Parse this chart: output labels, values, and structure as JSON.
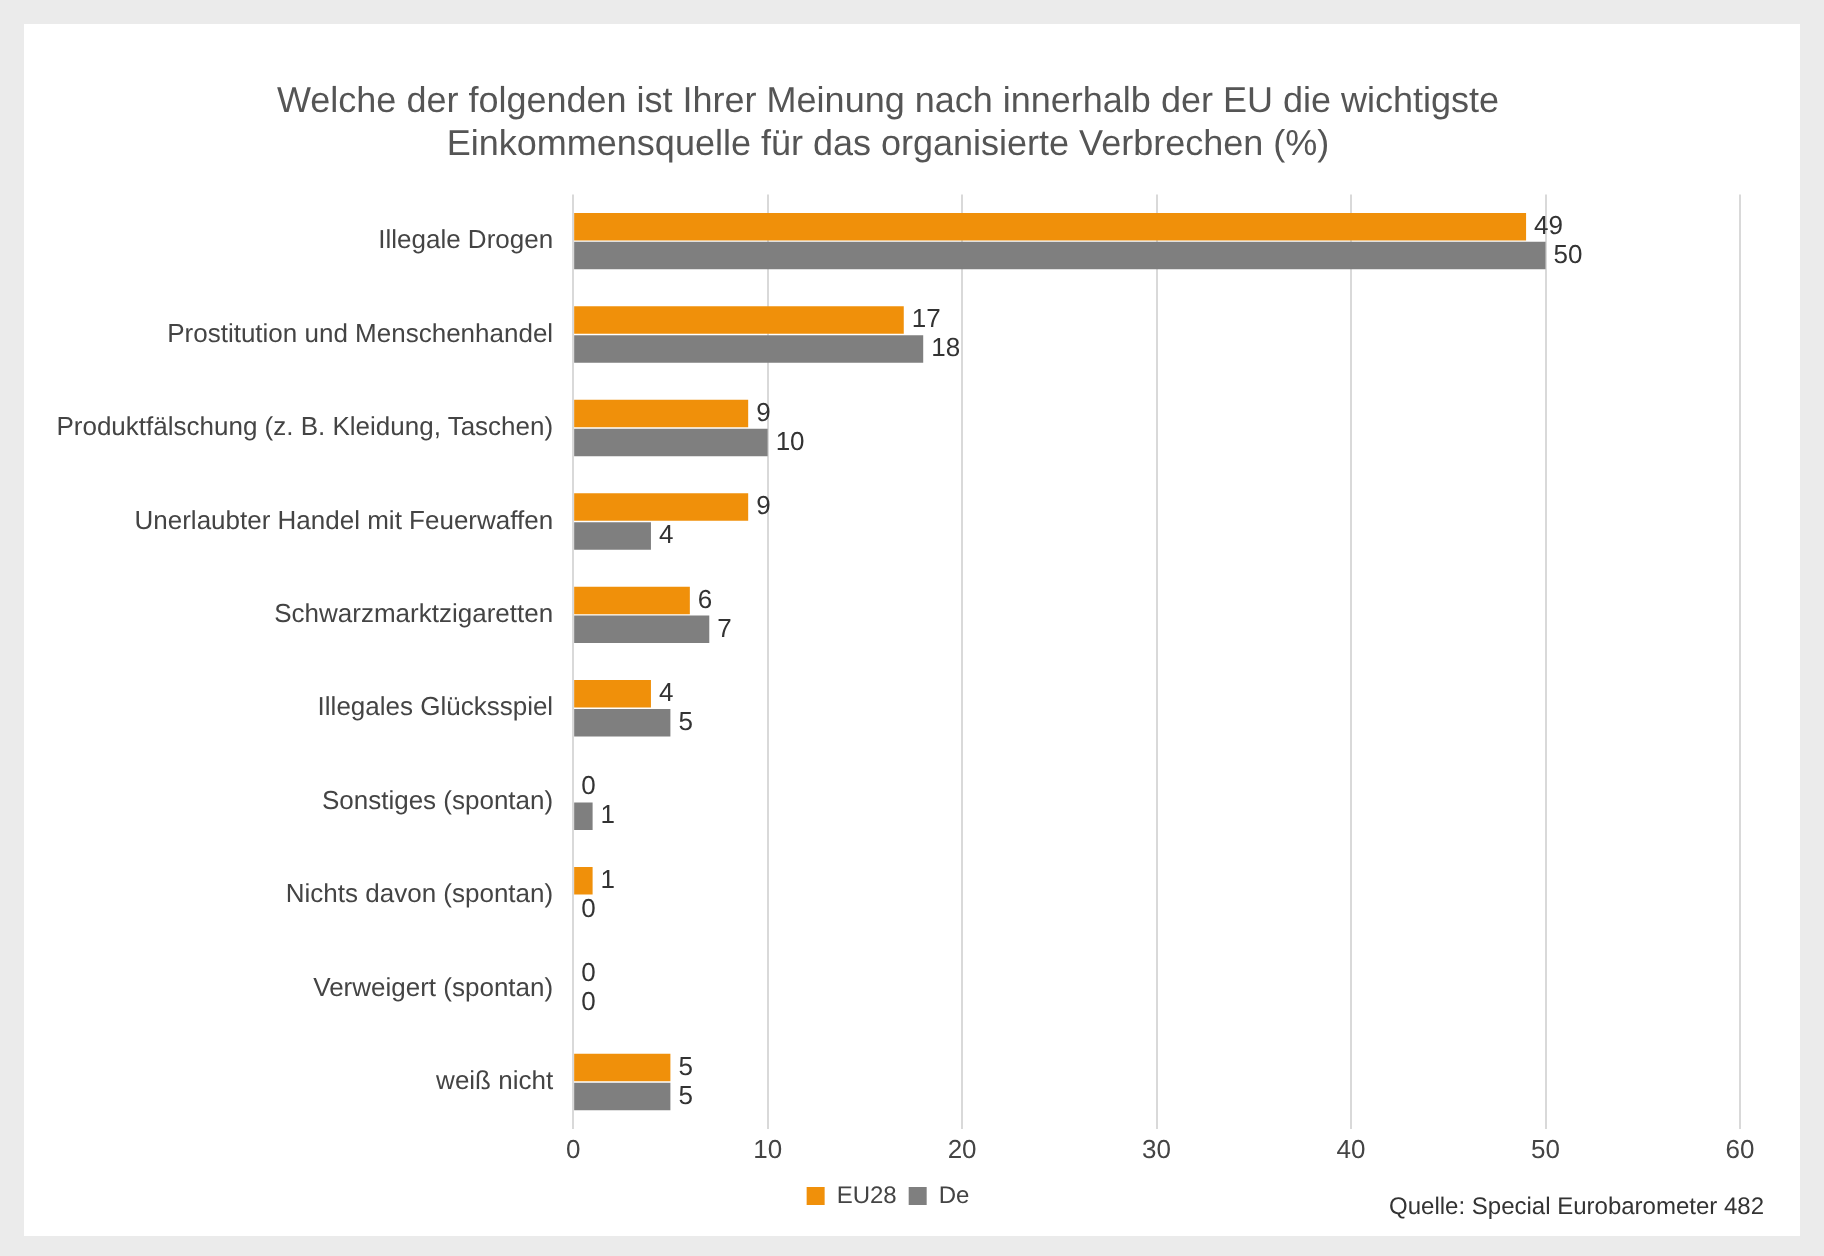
{
  "chart_data": {
    "type": "bar",
    "orientation": "horizontal",
    "title": "Welche der folgenden ist Ihrer Meinung nach innerhalb der EU die wichtigste\nEinkommensquelle für das organisierte Verbrechen (%)",
    "categories": [
      "Illegale Drogen",
      "Prostitution und Menschenhandel",
      "Produktfälschung (z. B. Kleidung, Taschen)",
      "Unerlaubter Handel mit Feuerwaffen",
      "Schwarzmarktzigaretten",
      "Illegales Glücksspiel",
      "Sonstiges (spontan)",
      "Nichts davon (spontan)",
      "Verweigert (spontan)",
      "weiß nicht"
    ],
    "series": [
      {
        "name": "EU28",
        "color": "#f0900a",
        "values": [
          49,
          17,
          9,
          9,
          6,
          4,
          0,
          1,
          0,
          5
        ]
      },
      {
        "name": "De",
        "color": "#7f7f7f",
        "values": [
          50,
          18,
          10,
          4,
          7,
          5,
          1,
          0,
          0,
          5
        ]
      }
    ],
    "xlim": [
      0,
      60
    ],
    "xticks": [
      0,
      10,
      20,
      30,
      40,
      50,
      60
    ],
    "grid": "x",
    "legend": "bottom",
    "data_labels": true,
    "annotations": [
      "Quelle: Special Eurobarometer 482"
    ]
  }
}
